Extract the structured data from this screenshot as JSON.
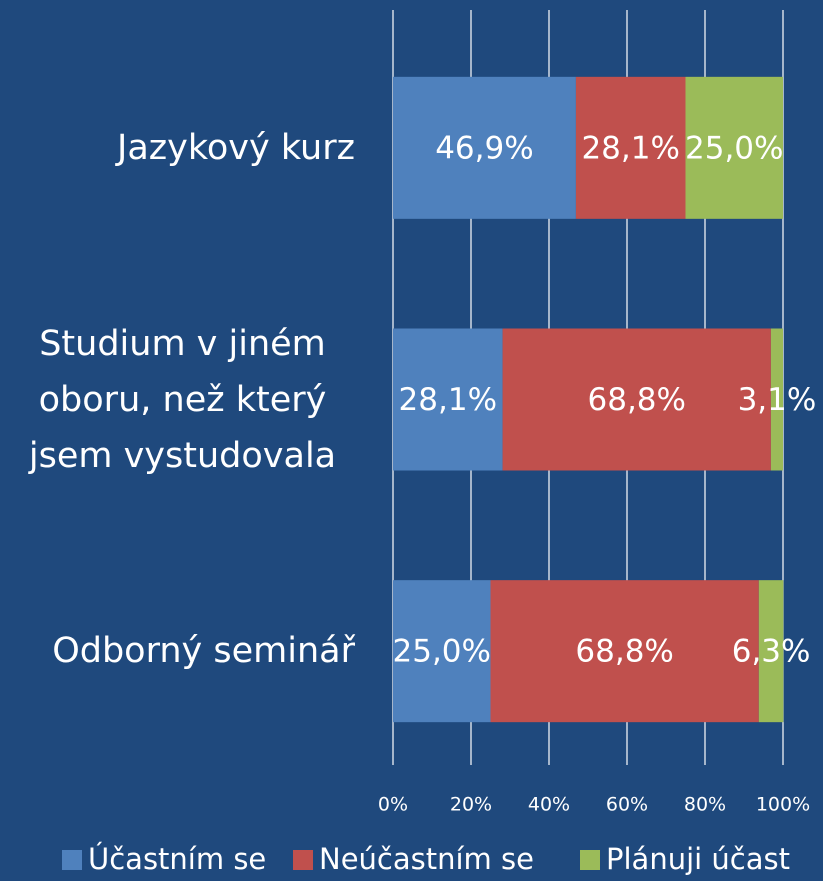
{
  "chart_data": {
    "type": "stacked-barh",
    "categories": [
      "Jazykový kurz",
      "Studium v jiném oboru, než který jsem vystudovala",
      "Odborný seminář"
    ],
    "series": [
      {
        "name": "Účastním se",
        "color": "#4f81bd",
        "values": [
          46.9,
          28.1,
          25.0
        ],
        "value_labels": [
          "46,9%",
          "28,1%",
          "25,0%"
        ]
      },
      {
        "name": "Neúčastním se",
        "color": "#c0504d",
        "values": [
          28.1,
          68.8,
          68.8
        ],
        "value_labels": [
          "28,1%",
          "68,8%",
          "68,8%"
        ]
      },
      {
        "name": "Plánuji účast",
        "color": "#9bbb59",
        "values": [
          25.0,
          3.1,
          6.3
        ],
        "value_labels": [
          "25,0%",
          "3,1%",
          "6,3%"
        ]
      }
    ],
    "xlim": [
      0,
      100
    ],
    "xticks": [
      {
        "value": 0,
        "label": "0%"
      },
      {
        "value": 20,
        "label": "20%"
      },
      {
        "value": 40,
        "label": "40%"
      },
      {
        "value": 60,
        "label": "60%"
      },
      {
        "value": 80,
        "label": "80%"
      },
      {
        "value": 100,
        "label": "100%"
      }
    ],
    "grid": true,
    "legend": "bottom"
  }
}
